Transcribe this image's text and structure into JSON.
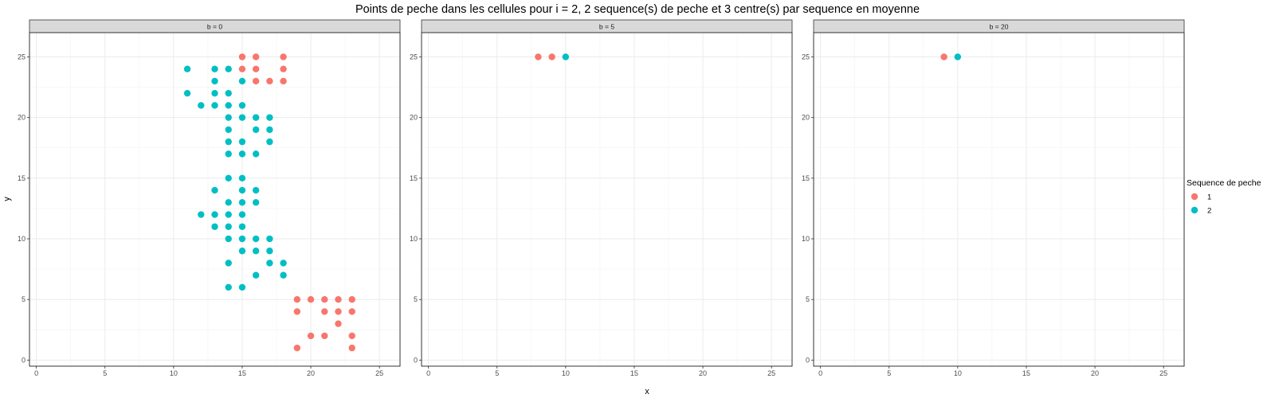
{
  "chart_data": {
    "type": "scatter",
    "title": "Points de peche dans les cellules pour i = 2, 2 sequence(s) de peche et 3 centre(s) par sequence en moyenne",
    "xlabel": "x",
    "ylabel": "y",
    "xlim": [
      -0.5,
      26.5
    ],
    "ylim": [
      -0.5,
      27
    ],
    "xticks": [
      0,
      5,
      10,
      15,
      20,
      25
    ],
    "yticks": [
      0,
      5,
      10,
      15,
      20,
      25
    ],
    "grid": true,
    "legend": {
      "title": "Sequence de peche",
      "position": "right",
      "entries": [
        {
          "label": "1",
          "color": "#F8766D"
        },
        {
          "label": "2",
          "color": "#00BFC4"
        }
      ]
    },
    "facets": [
      {
        "label": "b = 0",
        "series": [
          {
            "name": "1",
            "color": "#F8766D",
            "points": [
              [
                15,
                25
              ],
              [
                16,
                25
              ],
              [
                18,
                25
              ],
              [
                15,
                24
              ],
              [
                16,
                24
              ],
              [
                18,
                24
              ],
              [
                16,
                23
              ],
              [
                17,
                23
              ],
              [
                18,
                23
              ],
              [
                19,
                5
              ],
              [
                20,
                5
              ],
              [
                21,
                5
              ],
              [
                22,
                5
              ],
              [
                23,
                5
              ],
              [
                19,
                4
              ],
              [
                21,
                4
              ],
              [
                22,
                4
              ],
              [
                23,
                4
              ],
              [
                22,
                3
              ],
              [
                20,
                2
              ],
              [
                21,
                2
              ],
              [
                23,
                2
              ],
              [
                19,
                1
              ],
              [
                23,
                1
              ]
            ]
          },
          {
            "name": "2",
            "color": "#00BFC4",
            "points": [
              [
                11,
                24
              ],
              [
                13,
                24
              ],
              [
                14,
                24
              ],
              [
                13,
                23
              ],
              [
                15,
                23
              ],
              [
                11,
                22
              ],
              [
                13,
                22
              ],
              [
                14,
                22
              ],
              [
                12,
                21
              ],
              [
                13,
                21
              ],
              [
                14,
                21
              ],
              [
                15,
                21
              ],
              [
                14,
                20
              ],
              [
                15,
                20
              ],
              [
                16,
                20
              ],
              [
                17,
                20
              ],
              [
                14,
                19
              ],
              [
                16,
                19
              ],
              [
                17,
                19
              ],
              [
                14,
                18
              ],
              [
                15,
                18
              ],
              [
                17,
                18
              ],
              [
                14,
                17
              ],
              [
                15,
                17
              ],
              [
                16,
                17
              ],
              [
                14,
                15
              ],
              [
                15,
                15
              ],
              [
                13,
                14
              ],
              [
                15,
                14
              ],
              [
                16,
                14
              ],
              [
                14,
                13
              ],
              [
                15,
                13
              ],
              [
                16,
                13
              ],
              [
                12,
                12
              ],
              [
                13,
                12
              ],
              [
                14,
                12
              ],
              [
                15,
                12
              ],
              [
                13,
                11
              ],
              [
                14,
                11
              ],
              [
                15,
                11
              ],
              [
                14,
                10
              ],
              [
                15,
                10
              ],
              [
                16,
                10
              ],
              [
                17,
                10
              ],
              [
                15,
                9
              ],
              [
                16,
                9
              ],
              [
                17,
                9
              ],
              [
                14,
                8
              ],
              [
                17,
                8
              ],
              [
                18,
                8
              ],
              [
                16,
                7
              ],
              [
                18,
                7
              ],
              [
                14,
                6
              ],
              [
                15,
                6
              ]
            ]
          }
        ]
      },
      {
        "label": "b = 5",
        "series": [
          {
            "name": "1",
            "color": "#F8766D",
            "points": [
              [
                8,
                25
              ],
              [
                9,
                25
              ]
            ]
          },
          {
            "name": "2",
            "color": "#00BFC4",
            "points": [
              [
                10,
                25
              ]
            ]
          }
        ]
      },
      {
        "label": "b = 20",
        "series": [
          {
            "name": "1",
            "color": "#F8766D",
            "points": [
              [
                9,
                25
              ]
            ]
          },
          {
            "name": "2",
            "color": "#00BFC4",
            "points": [
              [
                10,
                25
              ]
            ]
          }
        ]
      }
    ]
  }
}
